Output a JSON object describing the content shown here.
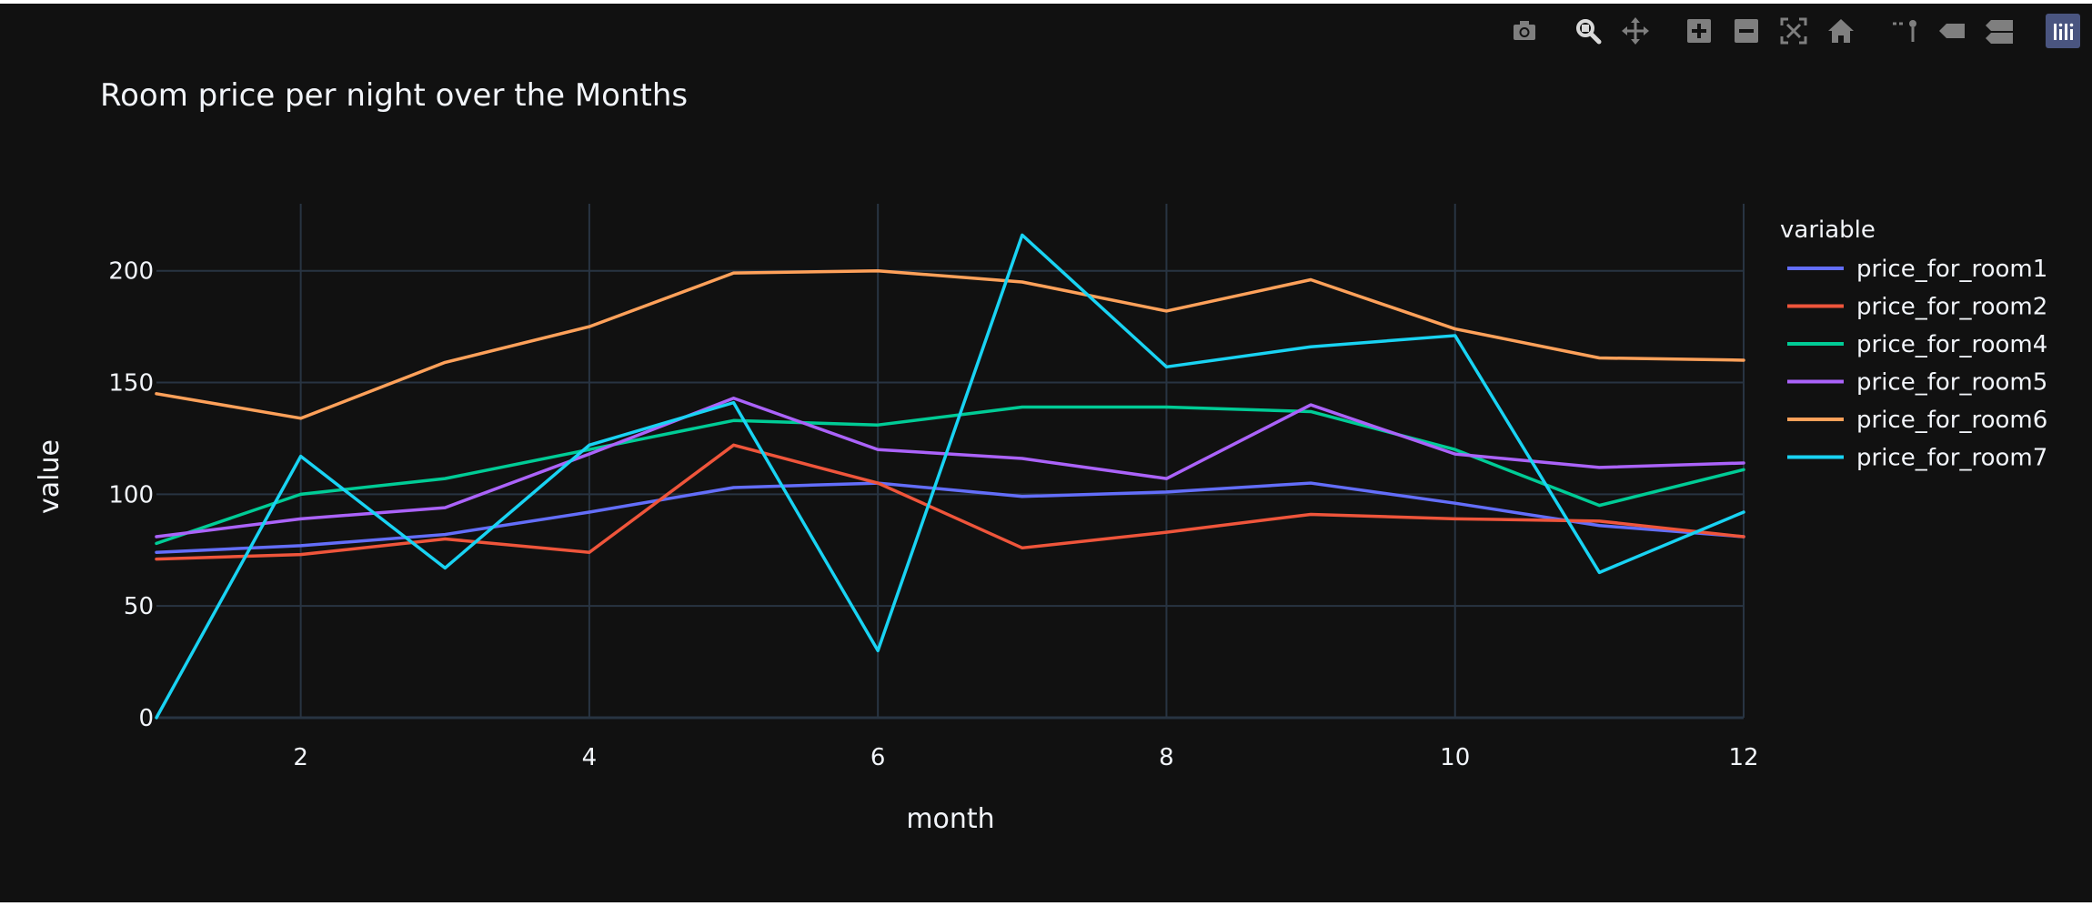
{
  "modebar": {
    "buttons": [
      {
        "name": "camera-icon",
        "group": 0
      },
      {
        "name": "zoom-icon",
        "group": 1,
        "active": true
      },
      {
        "name": "pan-icon",
        "group": 1
      },
      {
        "name": "zoom-in-icon",
        "group": 2
      },
      {
        "name": "zoom-out-icon",
        "group": 2
      },
      {
        "name": "autoscale-icon",
        "group": 2
      },
      {
        "name": "reset-axes-icon",
        "group": 2
      },
      {
        "name": "spike-lines-icon",
        "group": 3
      },
      {
        "name": "hover-closest-icon",
        "group": 3
      },
      {
        "name": "hover-compare-icon",
        "group": 3
      },
      {
        "name": "plotly-logo-icon",
        "group": 4
      }
    ]
  },
  "colors": {
    "background": "#111111",
    "grid": "#283442",
    "text": "#f2f5fa",
    "modebar_icon": "#7f7f7f",
    "modebar_icon_active": "#d9d9d9"
  },
  "chart_data": {
    "type": "line",
    "title": "Room price per night over the Months",
    "xlabel": "month",
    "ylabel": "value",
    "xlim": [
      1,
      12
    ],
    "ylim": [
      0,
      230
    ],
    "xticks": [
      2,
      4,
      6,
      8,
      10,
      12
    ],
    "yticks": [
      0,
      50,
      100,
      150,
      200
    ],
    "grid": true,
    "legend_title": "variable",
    "legend_position": "right",
    "x": [
      1,
      2,
      3,
      4,
      5,
      6,
      7,
      8,
      9,
      10,
      11,
      12
    ],
    "series": [
      {
        "name": "price_for_room1",
        "color": "#636efa",
        "values": [
          74,
          77,
          82,
          92,
          103,
          105,
          99,
          101,
          105,
          96,
          86,
          81
        ]
      },
      {
        "name": "price_for_room2",
        "color": "#ef553b",
        "values": [
          71,
          73,
          80,
          74,
          122,
          105,
          76,
          83,
          91,
          89,
          88,
          81
        ]
      },
      {
        "name": "price_for_room4",
        "color": "#00cc96",
        "values": [
          78,
          100,
          107,
          120,
          133,
          131,
          139,
          139,
          137,
          120,
          95,
          111
        ]
      },
      {
        "name": "price_for_room5",
        "color": "#ab63fa",
        "values": [
          81,
          89,
          94,
          118,
          143,
          120,
          116,
          107,
          140,
          118,
          112,
          114
        ]
      },
      {
        "name": "price_for_room6",
        "color": "#ffa15a",
        "values": [
          145,
          134,
          159,
          175,
          199,
          200,
          195,
          182,
          196,
          174,
          161,
          160
        ]
      },
      {
        "name": "price_for_room7",
        "color": "#19d3f3",
        "values": [
          0,
          117,
          67,
          122,
          141,
          30,
          216,
          157,
          166,
          171,
          65,
          92
        ]
      }
    ]
  }
}
